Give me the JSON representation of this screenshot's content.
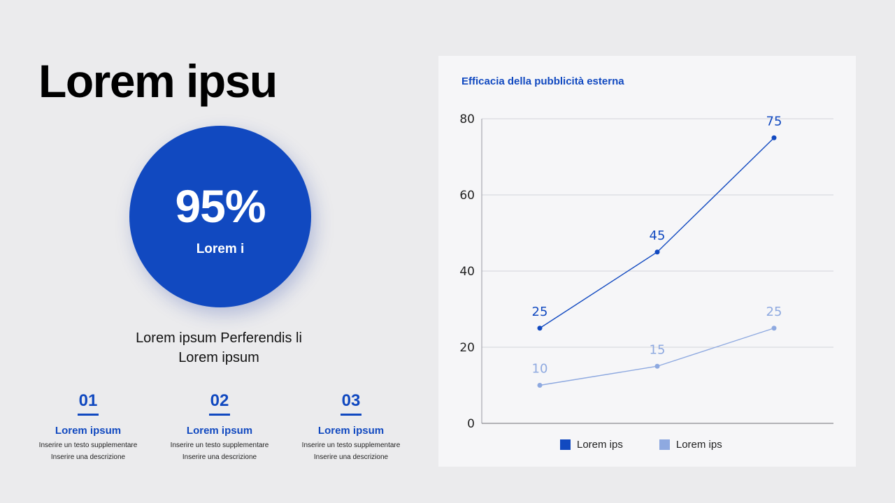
{
  "slide": {
    "title": "Lorem ipsu",
    "kpi": {
      "value": "95%",
      "label": "Lorem i",
      "color": "#1149c0"
    },
    "description": "Lorem ipsum Perferendis li Lorem ipsum",
    "steps": [
      {
        "number": "01",
        "heading": "Lorem ipsum",
        "line1": "Inserire un testo supplementare",
        "line2": "Inserire una descrizione"
      },
      {
        "number": "02",
        "heading": "Lorem ipsum",
        "line1": "Inserire un testo supplementare",
        "line2": "Inserire una descrizione"
      },
      {
        "number": "03",
        "heading": "Lorem ipsum",
        "line1": "Inserire un testo supplementare",
        "line2": "Inserire una descrizione"
      }
    ]
  },
  "chart_data": {
    "type": "line",
    "title": "Efficacia della pubblicità esterna",
    "categories": [
      "",
      "",
      ""
    ],
    "series": [
      {
        "name": "Lorem ips",
        "values": [
          25,
          45,
          75
        ],
        "color": "#1149c0"
      },
      {
        "name": "Lorem ips",
        "values": [
          10,
          15,
          25
        ],
        "color": "#8ea9e0"
      }
    ],
    "yticks": [
      0,
      20,
      40,
      60,
      80
    ],
    "ylim": [
      0,
      80
    ],
    "xlabel": "",
    "ylabel": "",
    "grid": true,
    "data_labels": true,
    "legend_position": "bottom"
  }
}
